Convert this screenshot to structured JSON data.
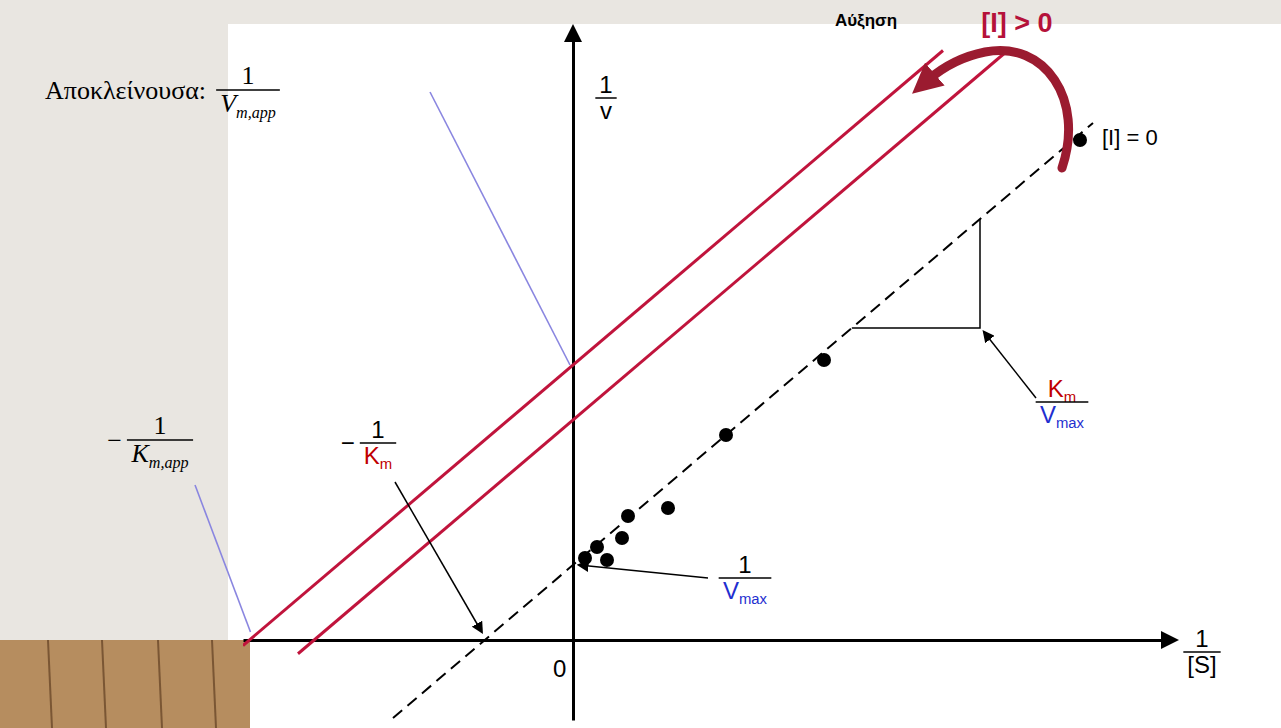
{
  "chart_data": {
    "type": "line",
    "x_label": {
      "numerator": {
        "text": "1"
      },
      "denominator": {
        "text": "[S]"
      }
    },
    "y_label": {
      "numerator": {
        "text": "1"
      },
      "denominator": {
        "text": "v"
      }
    },
    "xlim": [
      -3.3,
      5.9
    ],
    "ylim": [
      -0.8,
      6.0
    ],
    "xticks": [
      0
    ],
    "yticks": [],
    "tick_labels": "x",
    "series": [
      {
        "type": "line",
        "color": "#000000",
        "line_style": "dashed",
        "x": [
          -1.8,
          5.2
        ],
        "values": [
          -0.78,
          5.17
        ]
      },
      {
        "type": "scatter",
        "color": "#000000",
        "marker": "circle",
        "x": [
          0.12,
          0.24,
          0.34,
          0.49,
          0.55,
          0.95,
          1.53,
          2.51,
          5.07
        ],
        "values": [
          0.82,
          0.93,
          0.8,
          1.02,
          1.24,
          1.32,
          2.05,
          2.8,
          5.0
        ]
      },
      {
        "type": "line",
        "color": "#c0143c",
        "line_style": "solid",
        "x": [
          -2.75,
          4.35
        ],
        "values": [
          -0.1375,
          5.8975
        ]
      },
      {
        "type": "line",
        "color": "#c0143c",
        "line_style": "solid",
        "x": [
          -3.3,
          3.7
        ],
        "values": [
          -0.055,
          5.895
        ]
      }
    ],
    "annotations": [
      {
        "text": "Αύξηση"
      },
      {
        "text": "[I] > 0"
      },
      {
        "text": "[I] = 0"
      },
      {
        "prefix": "Αποκλείνουσα:",
        "numerator": {
          "text": "1"
        },
        "denominator": {
          "text": "V",
          "sub": "m,app"
        }
      },
      {
        "sign": "−",
        "numerator": {
          "text": "1"
        },
        "denominator": {
          "text": "K",
          "sub": "m,app"
        }
      },
      {
        "sign": "−",
        "numerator": {
          "text": "1"
        },
        "denominator": {
          "text": "K",
          "sub": "m"
        }
      },
      {
        "numerator": {
          "text": "1"
        },
        "denominator": {
          "text": "V",
          "sub": "max"
        }
      },
      {
        "numerator": {
          "text": "K",
          "sub": "m"
        },
        "denominator": {
          "text": "V",
          "sub": "max"
        }
      }
    ]
  }
}
